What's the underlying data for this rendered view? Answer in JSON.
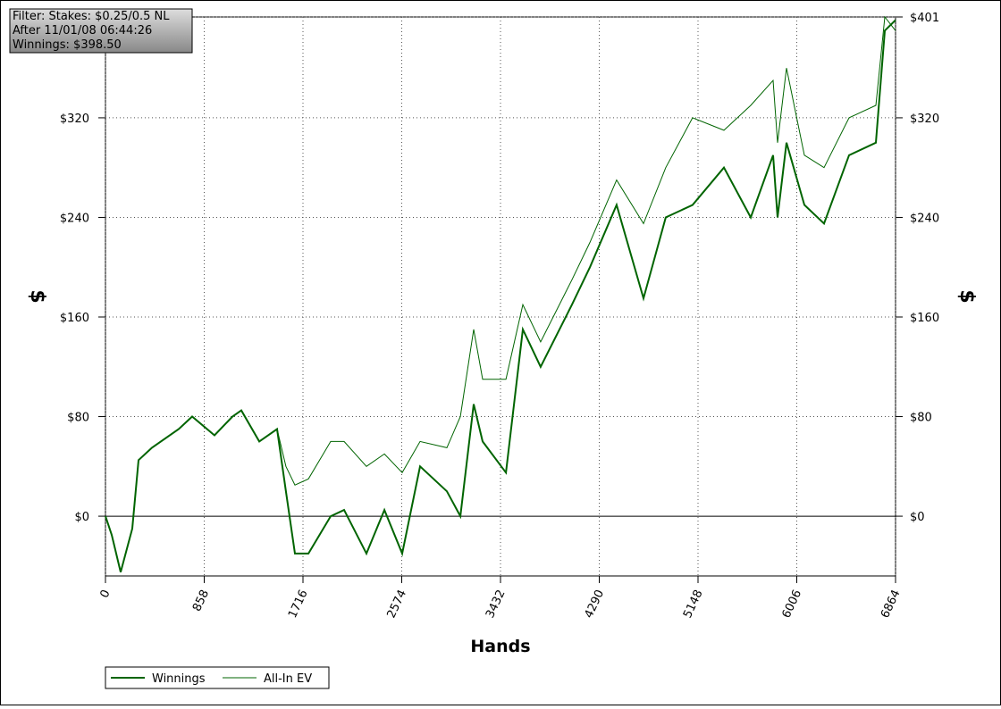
{
  "chart_data": {
    "type": "line",
    "info": [
      "Filter: Stakes: $0.25/0.5 NL",
      "After 11/01/08 06:44:26",
      "Winnings: $398.50"
    ],
    "xlabel": "Hands",
    "ylabel": "$",
    "x": [
      0,
      54,
      132,
      233,
      287,
      404,
      637,
      753,
      947,
      1103,
      1180,
      1336,
      1491,
      1568,
      1646,
      1763,
      1957,
      2073,
      2267,
      2423,
      2578,
      2733,
      2966,
      3083,
      3199,
      3277,
      3479,
      3626,
      3781,
      4053,
      4209,
      4441,
      4674,
      4868,
      5101,
      5373,
      5606,
      5800,
      5839,
      5917,
      6072,
      6243,
      6460,
      6693,
      6771,
      6864
    ],
    "series": [
      {
        "name": "Winnings",
        "color": "#006400",
        "values": [
          0,
          -15,
          -45,
          -10,
          45,
          55,
          70,
          80,
          65,
          80,
          85,
          60,
          70,
          20,
          -30,
          -30,
          0,
          5,
          -30,
          5,
          -30,
          40,
          20,
          0,
          90,
          60,
          35,
          150,
          120,
          170,
          200,
          250,
          175,
          240,
          250,
          280,
          240,
          290,
          240,
          300,
          250,
          235,
          290,
          300,
          390,
          398.5
        ]
      },
      {
        "name": "All-In EV",
        "color": "#006400",
        "values": [
          0,
          -15,
          -45,
          -10,
          45,
          55,
          70,
          80,
          65,
          80,
          85,
          60,
          70,
          40,
          25,
          30,
          60,
          60,
          40,
          50,
          35,
          60,
          55,
          80,
          150,
          110,
          110,
          170,
          140,
          190,
          220,
          270,
          235,
          280,
          320,
          310,
          330,
          350,
          300,
          360,
          290,
          280,
          320,
          330,
          401,
          390
        ]
      }
    ],
    "xlim": [
      0,
      6864
    ],
    "xticks": [
      0,
      858,
      1716,
      2574,
      3432,
      4290,
      5148,
      6006,
      6864
    ],
    "ylim": [
      -48,
      401
    ],
    "yticks": [
      {
        "value": 0,
        "label": "$0"
      },
      {
        "value": 80,
        "label": "$80"
      },
      {
        "value": 160,
        "label": "$160"
      },
      {
        "value": 240,
        "label": "$240"
      },
      {
        "value": 320,
        "label": "$320"
      },
      {
        "value": 401,
        "label": "$401"
      }
    ],
    "grid": true
  }
}
